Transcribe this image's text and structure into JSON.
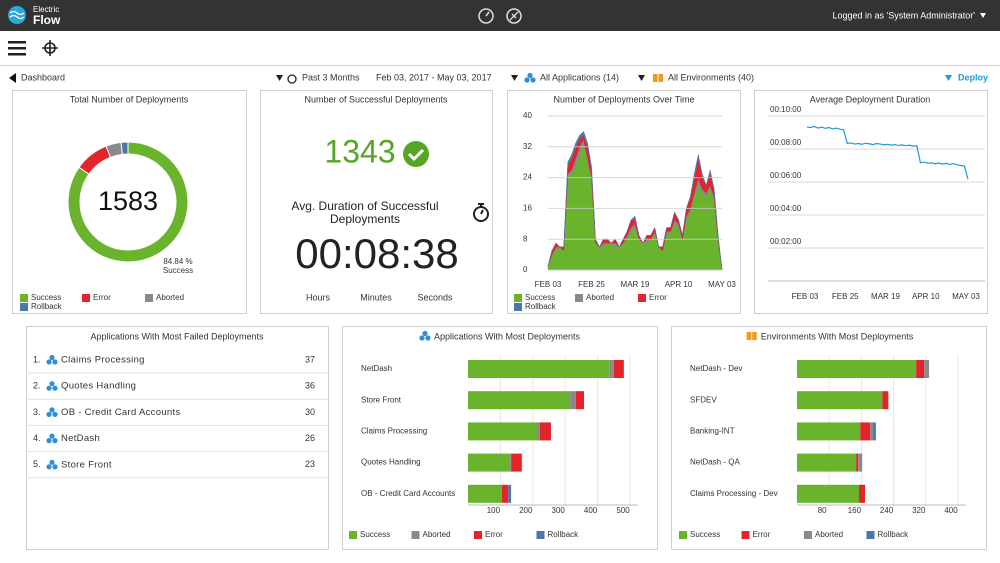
{
  "header": {
    "brand_top": "Electric",
    "brand_bottom": "Flow",
    "user": "Logged in as 'System Administrator'"
  },
  "toolbar": {
    "back": "Dashboard",
    "range": "Past 3 Months",
    "dates": "Feb 03, 2017 - May 03, 2017",
    "applications": "All Applications (14)",
    "environments": "All Environments (40)",
    "action": "Deploy"
  },
  "successful": {
    "title": "Number of Successful Deployments",
    "count": 1343,
    "duration_title": "Avg. Duration of Successful Deployments",
    "duration": "00:08:38",
    "units": [
      "Hours",
      "Minutes",
      "Seconds"
    ]
  },
  "failed": {
    "title": "Applications With Most Failed Deployments",
    "items": [
      {
        "rank": "1.",
        "name": "Claims Processing",
        "count": 37
      },
      {
        "rank": "2.",
        "name": "Quotes Handling",
        "count": 36
      },
      {
        "rank": "3.",
        "name": "OB - Credit Card Accounts",
        "count": 30
      },
      {
        "rank": "4.",
        "name": "NetDash",
        "count": 26
      },
      {
        "rank": "5.",
        "name": "Store Front",
        "count": 23
      }
    ]
  },
  "chart_data": [
    {
      "type": "pie",
      "donut": true,
      "title": "Total Number of Deployments",
      "total": 1583,
      "caption": "Success",
      "categories": [
        "Success",
        "Error",
        "Aborted",
        "Rollback"
      ],
      "values": [
        84.84,
        9.2,
        4.1,
        1.86
      ],
      "value_labels": [
        "84.84 %",
        null,
        null,
        null
      ],
      "colors": [
        "#6ab42d",
        "#e3242b",
        "#8a8a8a",
        "#4c77a8"
      ]
    },
    {
      "type": "area",
      "stacked": true,
      "title": "Number of Deployments Over Time",
      "x": [
        "FEB 03",
        null,
        null,
        null,
        null,
        null,
        null,
        null,
        null,
        null,
        null,
        "FEB 25",
        null,
        null,
        null,
        null,
        null,
        null,
        null,
        null,
        null,
        null,
        "MAR 19",
        null,
        null,
        null,
        null,
        null,
        null,
        null,
        null,
        null,
        null,
        "APR 10",
        null,
        null,
        null,
        null,
        null,
        null,
        null,
        null,
        null,
        null,
        "MAY 03"
      ],
      "series": [
        {
          "name": "Success",
          "color": "#6ab42d",
          "values": [
            1,
            4,
            5,
            6,
            5,
            24,
            25,
            27,
            30,
            33,
            28,
            23,
            7,
            6,
            6,
            7,
            7,
            6,
            6,
            7,
            8,
            10,
            11,
            8,
            7,
            7,
            8,
            9,
            6,
            5,
            9,
            10,
            12,
            11,
            8,
            13,
            15,
            19,
            22,
            20,
            19,
            21,
            18,
            8,
            0
          ]
        },
        {
          "name": "Aborted",
          "color": "#8a8a8a",
          "values": [
            0,
            0,
            1,
            0,
            0,
            1,
            1,
            2,
            2,
            1,
            1,
            1,
            0,
            0,
            1,
            0,
            0,
            1,
            0,
            0,
            1,
            1,
            1,
            0,
            0,
            1,
            0,
            1,
            0,
            0,
            1,
            0,
            1,
            1,
            0,
            1,
            1,
            1,
            2,
            1,
            1,
            1,
            1,
            0,
            0
          ]
        },
        {
          "name": "Error",
          "color": "#e3242b",
          "values": [
            0,
            1,
            1,
            0,
            1,
            2,
            3,
            3,
            2,
            1,
            3,
            2,
            1,
            0,
            1,
            1,
            0,
            1,
            0,
            1,
            1,
            2,
            1,
            1,
            0,
            1,
            1,
            1,
            0,
            1,
            1,
            1,
            2,
            1,
            1,
            2,
            3,
            4,
            5,
            3,
            2,
            3,
            2,
            1,
            0
          ]
        },
        {
          "name": "Rollback",
          "color": "#4c77a8",
          "values": [
            0,
            0,
            0,
            0,
            0,
            1,
            1,
            1,
            1,
            1,
            1,
            1,
            0,
            0,
            0,
            0,
            0,
            0,
            0,
            0,
            0,
            0,
            1,
            0,
            0,
            0,
            0,
            0,
            0,
            0,
            0,
            0,
            0,
            0,
            0,
            0,
            0,
            1,
            1,
            1,
            0,
            1,
            0,
            0,
            0
          ]
        }
      ],
      "ylim": [
        0,
        40
      ],
      "yticks": [
        0,
        8,
        16,
        24,
        32,
        40
      ],
      "grid": true
    },
    {
      "type": "line",
      "title": "Average Deployment Duration",
      "x": [
        "FEB 03",
        null,
        null,
        null,
        null,
        null,
        null,
        null,
        null,
        null,
        null,
        "FEB 25",
        null,
        null,
        null,
        null,
        null,
        null,
        null,
        null,
        null,
        null,
        "MAR 19",
        null,
        null,
        null,
        null,
        null,
        null,
        null,
        null,
        null,
        null,
        "APR 10",
        null,
        null,
        null,
        null,
        null,
        null,
        null,
        null,
        null,
        null,
        "MAY 03"
      ],
      "color": "#1a9ad6",
      "values": [
        560,
        558,
        562,
        556,
        560,
        555,
        558,
        553,
        556,
        552,
        550,
        500,
        502,
        498,
        500,
        497,
        501,
        499,
        496,
        500,
        498,
        495,
        497,
        494,
        496,
        493,
        495,
        492,
        494,
        490,
        492,
        430,
        432,
        428,
        430,
        426,
        429,
        425,
        428,
        424,
        427,
        423,
        420,
        418,
        370
      ],
      "ylim": [
        0,
        600
      ],
      "yticks": [
        {
          "value": 120,
          "label": "00:02:00"
        },
        {
          "value": 240,
          "label": "00:04:00"
        },
        {
          "value": 360,
          "label": "00:06:00"
        },
        {
          "value": 480,
          "label": "00:08:00"
        },
        {
          "value": 600,
          "label": "00:10:00"
        }
      ],
      "grid": true
    },
    {
      "type": "hbar",
      "stacked": true,
      "title": "Applications With Most Deployments",
      "categories": [
        "NetDash",
        "Store Front",
        "Claims Processing",
        "Quotes Handling",
        "OB - Credit Card Accounts"
      ],
      "series": [
        {
          "name": "Success",
          "color": "#6ab42d",
          "values": [
            438,
            315,
            216,
            130,
            102
          ]
        },
        {
          "name": "Aborted",
          "color": "#8a8a8a",
          "values": [
            12,
            18,
            6,
            3,
            3
          ]
        },
        {
          "name": "Error",
          "color": "#e3242b",
          "values": [
            31,
            25,
            34,
            31,
            19
          ]
        },
        {
          "name": "Rollback",
          "color": "#4c77a8",
          "values": [
            0,
            0,
            0,
            3,
            9
          ]
        }
      ],
      "xlim": [
        0,
        500
      ],
      "xticks": [
        100,
        200,
        300,
        400,
        500
      ],
      "grid": true
    },
    {
      "type": "hbar",
      "stacked": true,
      "title": "Environments With Most Deployments",
      "categories": [
        "NetDash - Dev",
        "SFDEV",
        "Banking-INT",
        "NetDash - QA",
        "Claims Processing - Dev"
      ],
      "series": [
        {
          "name": "Success",
          "color": "#6ab42d",
          "values": [
            296,
            212,
            157,
            147,
            154
          ]
        },
        {
          "name": "Error",
          "color": "#e3242b",
          "values": [
            20,
            15,
            25,
            5,
            15
          ]
        },
        {
          "name": "Aborted",
          "color": "#8a8a8a",
          "values": [
            12,
            0,
            7,
            10,
            0
          ]
        },
        {
          "name": "Rollback",
          "color": "#4c77a8",
          "values": [
            0,
            0,
            7,
            0,
            0
          ]
        }
      ],
      "xlim": [
        0,
        400
      ],
      "xticks": [
        80,
        160,
        240,
        320,
        400
      ],
      "grid": true
    }
  ]
}
